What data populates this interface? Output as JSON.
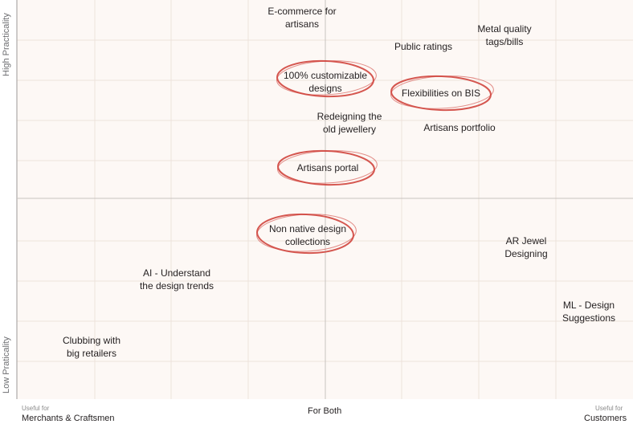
{
  "axes": {
    "y_top": "High Practicality",
    "y_bottom": "Low Praticality",
    "x_left_small": "Useful for",
    "x_left_big": "Merchants & Craftsmen",
    "x_center": "For Both",
    "x_right_small": "Useful for",
    "x_right_big": "Customers"
  },
  "colors": {
    "panel_bg": "#fdf8f5",
    "grid": "#ede3dc",
    "quadrant_lines": "#c8c3bf",
    "circle": "#d0453e",
    "text": "#231f20"
  },
  "items": [
    {
      "line1": "E-commerce for",
      "line2": "artisans",
      "circled": false
    },
    {
      "line1": "Metal quality",
      "line2": "tags/bills",
      "circled": false
    },
    {
      "line1": "Public ratings",
      "line2": "",
      "circled": false
    },
    {
      "line1": "100% customizable",
      "line2": "designs",
      "circled": true
    },
    {
      "line1": "Flexibilities on BIS",
      "line2": "",
      "circled": true
    },
    {
      "line1": "Redeigning the",
      "line2": "old jewellery",
      "circled": false
    },
    {
      "line1": "Artisans portfolio",
      "line2": "",
      "circled": false
    },
    {
      "line1": "Artisans portal",
      "line2": "",
      "circled": true
    },
    {
      "line1": "Non native design",
      "line2": "collections",
      "circled": true
    },
    {
      "line1": "AR Jewel",
      "line2": "Designing",
      "circled": false
    },
    {
      "line1": "AI - Understand",
      "line2": "the design trends",
      "circled": false
    },
    {
      "line1": "ML - Design",
      "line2": "Suggestions",
      "circled": false
    },
    {
      "line1": "Clubbing with",
      "line2": "big retailers",
      "circled": false
    }
  ]
}
